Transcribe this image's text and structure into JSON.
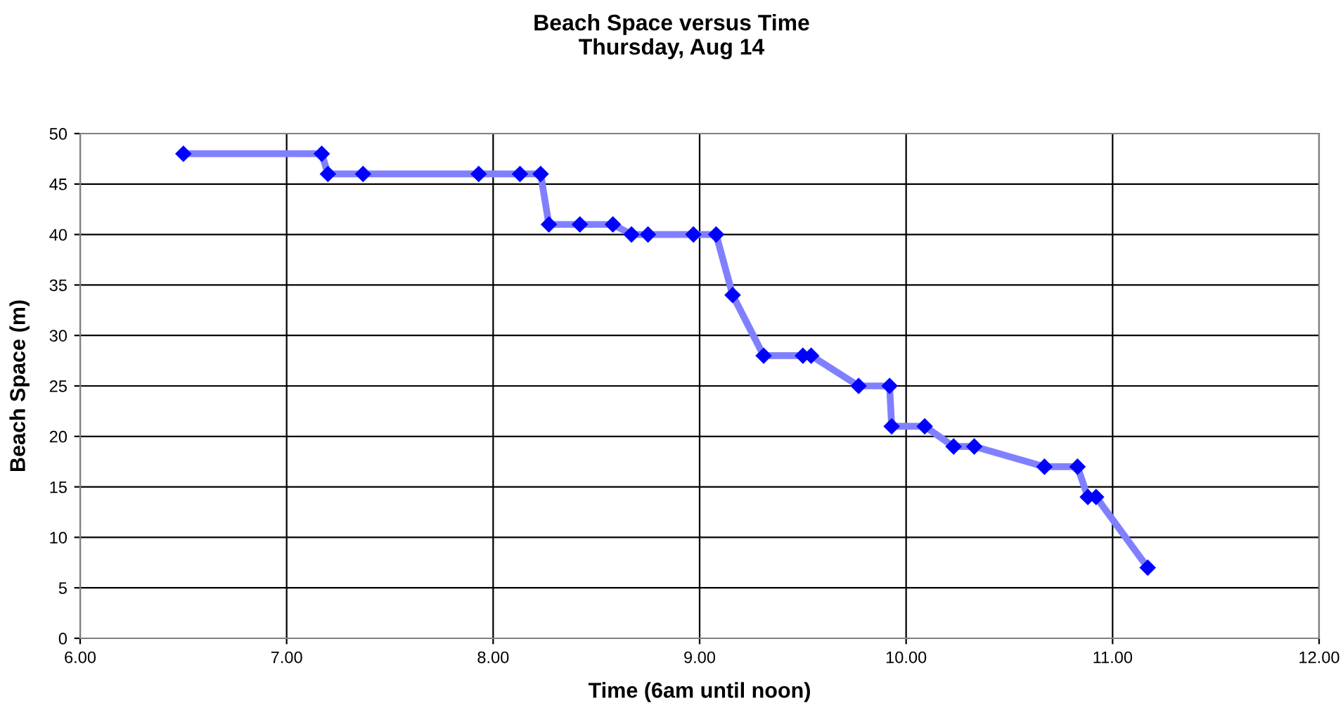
{
  "chart_data": {
    "type": "line",
    "title": "Beach Space versus Time\nThursday, Aug 14",
    "xlabel": "Time (6am until noon)",
    "ylabel": "Beach Space (m)",
    "x": [
      6.5,
      7.17,
      7.2,
      7.37,
      7.93,
      8.13,
      8.23,
      8.27,
      8.42,
      8.58,
      8.67,
      8.75,
      8.97,
      9.08,
      9.16,
      9.31,
      9.5,
      9.54,
      9.77,
      9.92,
      9.93,
      10.09,
      10.23,
      10.33,
      10.67,
      10.83,
      10.88,
      10.92,
      11.17
    ],
    "series": [
      {
        "color": "#8080ff",
        "values": [
          48,
          48,
          46,
          46,
          46,
          46,
          46,
          41,
          41,
          41,
          40,
          40,
          40,
          40,
          34,
          28,
          28,
          28,
          25,
          25,
          21,
          21,
          19,
          19,
          17,
          17,
          14,
          14,
          7
        ]
      }
    ],
    "xlim": [
      6,
      12
    ],
    "xticks": [
      {
        "value": 6,
        "label": "6.00"
      },
      {
        "value": 7,
        "label": "7.00"
      },
      {
        "value": 8,
        "label": "8.00"
      },
      {
        "value": 9,
        "label": "9.00"
      },
      {
        "value": 10,
        "label": "10.00"
      },
      {
        "value": 11,
        "label": "11.00"
      },
      {
        "value": 12,
        "label": "12.00"
      }
    ],
    "ylim": [
      0,
      50
    ],
    "yticks": [
      0,
      5,
      10,
      15,
      20,
      25,
      30,
      35,
      40,
      45,
      50
    ],
    "grid": true,
    "marker": "diamond",
    "line_style": "solid"
  }
}
